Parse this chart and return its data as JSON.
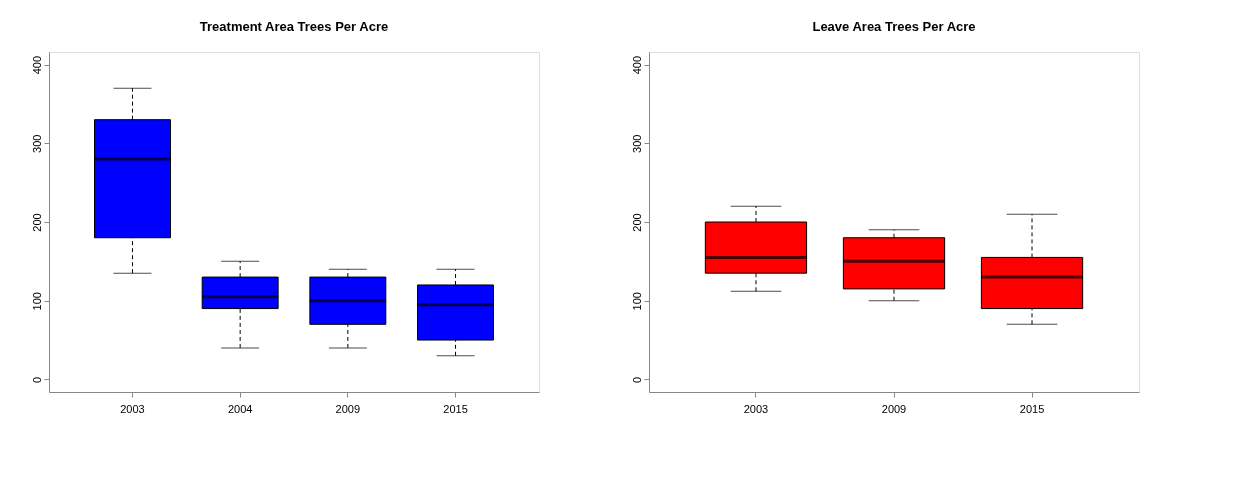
{
  "chart_data": [
    {
      "type": "box",
      "title": "Treatment Area Trees Per Acre",
      "categories": [
        "2003",
        "2004",
        "2009",
        "2015"
      ],
      "ylim": [
        -16,
        416
      ],
      "yticks": [
        0,
        100,
        200,
        300,
        400
      ],
      "grid": false,
      "series": [
        {
          "color": "#0000ff",
          "boxes": [
            {
              "low": 135,
              "q1": 180,
              "median": 280,
              "q3": 330,
              "high": 370
            },
            {
              "low": 40,
              "q1": 90,
              "median": 105,
              "q3": 130,
              "high": 150
            },
            {
              "low": 40,
              "q1": 70,
              "median": 100,
              "q3": 130,
              "high": 140
            },
            {
              "low": 30,
              "q1": 50,
              "median": 95,
              "q3": 120,
              "high": 140
            }
          ]
        }
      ]
    },
    {
      "type": "box",
      "title": "Leave Area Trees Per Acre",
      "categories": [
        "2003",
        "2009",
        "2015"
      ],
      "ylim": [
        -16,
        416
      ],
      "yticks": [
        0,
        100,
        200,
        300,
        400
      ],
      "grid": false,
      "series": [
        {
          "color": "#ff0000",
          "boxes": [
            {
              "low": 112,
              "q1": 135,
              "median": 155,
              "q3": 200,
              "high": 220
            },
            {
              "low": 100,
              "q1": 115,
              "median": 150,
              "q3": 180,
              "high": 190
            },
            {
              "low": 70,
              "q1": 90,
              "median": 130,
              "q3": 155,
              "high": 210
            }
          ]
        }
      ]
    }
  ]
}
